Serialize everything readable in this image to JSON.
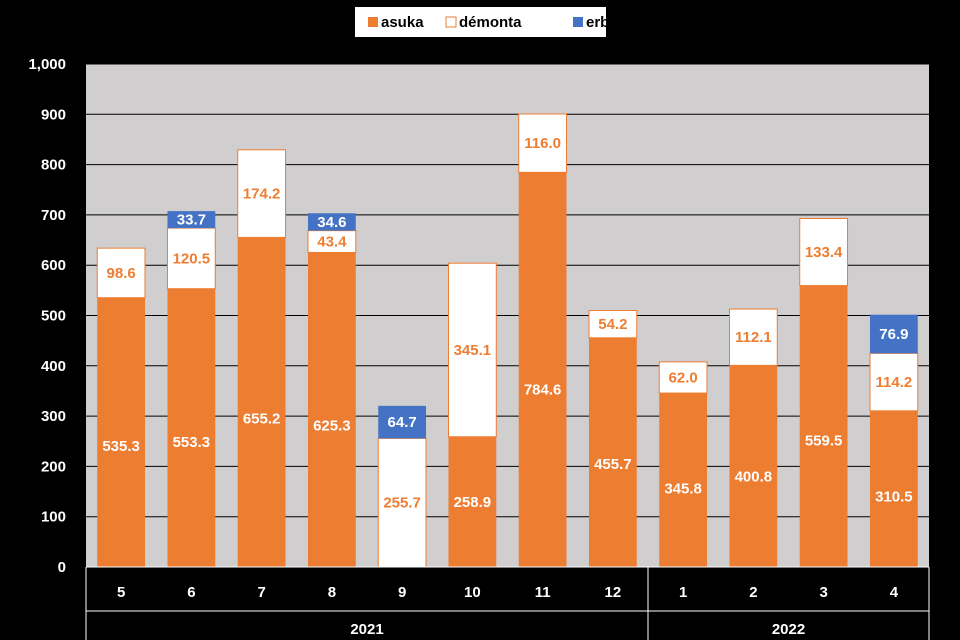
{
  "chart_data": {
    "type": "bar",
    "stacked": true,
    "title": "",
    "xlabel": "",
    "ylabel": "",
    "ylim": [
      0,
      1000
    ],
    "yticks": [
      "0",
      "100",
      "200",
      "300",
      "400",
      "500",
      "600",
      "700",
      "800",
      "900",
      "1,000"
    ],
    "grid": true,
    "legend_position": "top-center",
    "categories": [
      "5",
      "6",
      "7",
      "8",
      "9",
      "10",
      "11",
      "12",
      "1",
      "2",
      "3",
      "4"
    ],
    "category_groups": [
      {
        "label": "2021",
        "count": 8
      },
      {
        "label": "2022",
        "count": 4
      }
    ],
    "series": [
      {
        "name": "asuka",
        "color": "#ED7D31",
        "label_color": "#FFFFFF",
        "values": [
          535.3,
          553.3,
          655.2,
          625.3,
          null,
          258.9,
          784.6,
          455.7,
          345.8,
          400.8,
          559.5,
          310.5
        ]
      },
      {
        "name": "démonta",
        "color": "#FFFFFF",
        "label_color": "#ED7D31",
        "values": [
          98.6,
          120.5,
          174.2,
          43.4,
          255.7,
          345.1,
          116.0,
          54.2,
          62.0,
          112.1,
          133.4,
          114.2
        ]
      },
      {
        "name": "erba",
        "color": "#4472C4",
        "label_color": "#FFFFFF",
        "values": [
          null,
          33.7,
          null,
          34.6,
          64.7,
          null,
          null,
          null,
          null,
          null,
          null,
          76.9
        ]
      }
    ]
  }
}
